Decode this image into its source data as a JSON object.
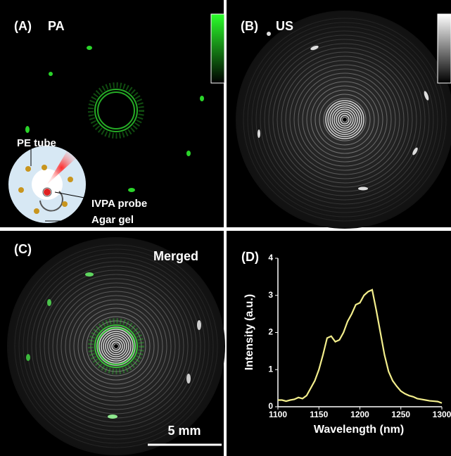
{
  "panels": [
    {
      "label": "(A)",
      "title": "PA"
    },
    {
      "label": "(B)",
      "title": "US"
    },
    {
      "label": "(C)",
      "title": "Merged",
      "scale_bar": "5 mm"
    }
  ],
  "inset_labels": [
    "PE tube",
    "IVPA probe",
    "Agar gel"
  ],
  "chart_data": {
    "type": "line",
    "label": "(D)",
    "xlabel": "Wavelength (nm)",
    "ylabel": "Intensity (a.u.)",
    "x": [
      1100,
      1105,
      1110,
      1115,
      1120,
      1125,
      1130,
      1135,
      1140,
      1145,
      1150,
      1155,
      1160,
      1165,
      1170,
      1175,
      1180,
      1185,
      1190,
      1195,
      1200,
      1205,
      1210,
      1215,
      1220,
      1225,
      1230,
      1235,
      1240,
      1245,
      1250,
      1255,
      1260,
      1265,
      1270,
      1275,
      1280,
      1285,
      1290,
      1295,
      1300
    ],
    "series": [
      {
        "color": "#f3ee8c",
        "values": [
          0.18,
          0.18,
          0.15,
          0.18,
          0.2,
          0.25,
          0.22,
          0.3,
          0.5,
          0.7,
          1.0,
          1.4,
          1.85,
          1.9,
          1.75,
          1.8,
          2.0,
          2.3,
          2.5,
          2.75,
          2.8,
          3.0,
          3.1,
          3.15,
          2.6,
          2.0,
          1.4,
          0.95,
          0.7,
          0.55,
          0.42,
          0.35,
          0.3,
          0.27,
          0.22,
          0.2,
          0.18,
          0.16,
          0.15,
          0.14,
          0.1
        ]
      }
    ],
    "xlim": [
      1100,
      1300
    ],
    "xticks": [
      1100,
      1150,
      1200,
      1250,
      1300
    ],
    "ylim": [
      0,
      4
    ],
    "yticks": [
      0,
      1,
      2,
      3,
      4
    ]
  }
}
